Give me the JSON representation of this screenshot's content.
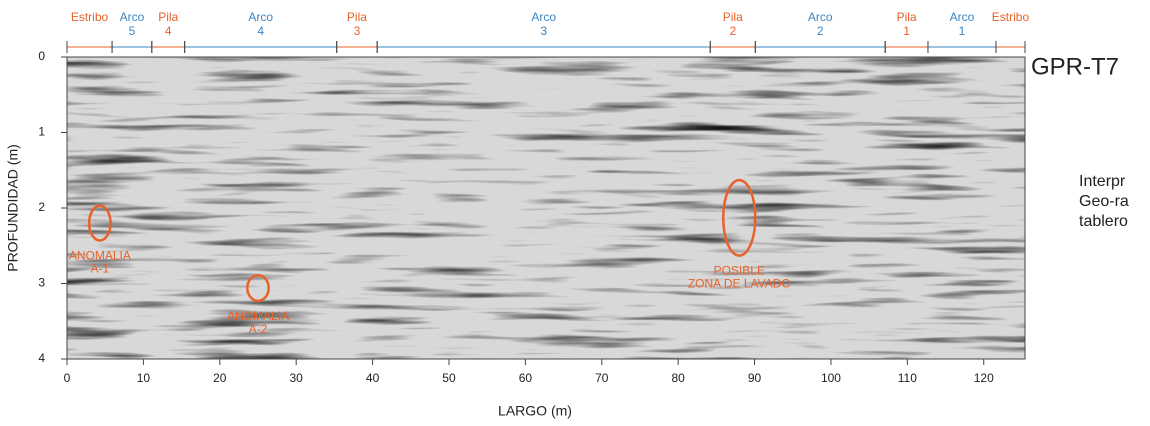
{
  "chart_data": {
    "type": "radargram",
    "title": "GPR-T7",
    "side_text": [
      "Interpr",
      "Geo-ra",
      "tablero"
    ],
    "x_label": "LARGO (m)",
    "y_label": "PROFUNDIDAD (m)",
    "xlim": [
      0,
      125.4
    ],
    "ylim": [
      0,
      4
    ],
    "y_inverted": true,
    "xticks": [
      0,
      10,
      20,
      30,
      40,
      50,
      60,
      70,
      80,
      90,
      100,
      110,
      120
    ],
    "yticks": [
      0,
      1,
      2,
      3,
      4
    ],
    "segments": [
      {
        "label": [
          "Estribo"
        ],
        "start": 0,
        "end": 5.9,
        "color": "#e8622b"
      },
      {
        "label": [
          "Arco",
          "5"
        ],
        "start": 5.9,
        "end": 11.1,
        "color": "#3a86c4"
      },
      {
        "label": [
          "Pila",
          "4"
        ],
        "start": 11.1,
        "end": 15.4,
        "color": "#e8622b"
      },
      {
        "label": [
          "Arco",
          "4"
        ],
        "start": 15.4,
        "end": 35.3,
        "color": "#3a86c4"
      },
      {
        "label": [
          "Pila",
          "3"
        ],
        "start": 35.3,
        "end": 40.6,
        "color": "#e8622b"
      },
      {
        "label": [
          "Arco",
          "3"
        ],
        "start": 40.6,
        "end": 84.2,
        "color": "#3a86c4"
      },
      {
        "label": [
          "Pila",
          "2"
        ],
        "start": 84.2,
        "end": 90.1,
        "color": "#e8622b"
      },
      {
        "label": [
          "Arco",
          "2"
        ],
        "start": 90.1,
        "end": 107.1,
        "color": "#3a86c4"
      },
      {
        "label": [
          "Pila",
          "1"
        ],
        "start": 107.1,
        "end": 112.7,
        "color": "#e8622b"
      },
      {
        "label": [
          "Arco",
          "1"
        ],
        "start": 112.7,
        "end": 121.6,
        "color": "#3a86c4"
      },
      {
        "label": [
          "Estribo"
        ],
        "start": 121.6,
        "end": 125.4,
        "color": "#e8622b"
      }
    ],
    "annotations": [
      {
        "label": [
          "ANOMALIA",
          "A-1"
        ],
        "x": 4.3,
        "y": 2.2,
        "rx": 1.4,
        "ry": 0.23
      },
      {
        "label": [
          "ANOMALIA",
          "A-2"
        ],
        "x": 25.0,
        "y": 3.06,
        "rx": 1.4,
        "ry": 0.17
      },
      {
        "label": [
          "POSIBLE",
          "ZONA DE LAVADO"
        ],
        "x": 88.0,
        "y": 2.13,
        "rx": 2.1,
        "ry": 0.5
      }
    ],
    "annotation_color": "#e8622b",
    "title_color": "#3a86c4"
  }
}
